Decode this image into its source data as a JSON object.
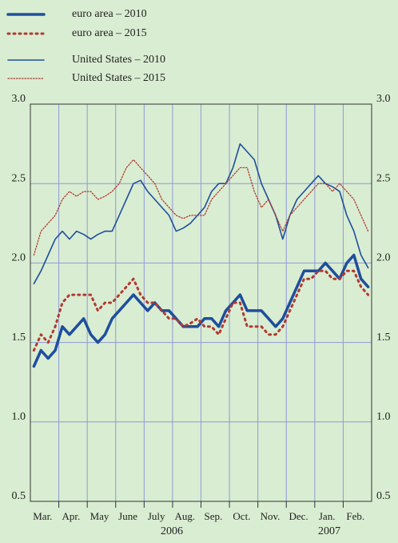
{
  "chart_data": {
    "type": "line",
    "categories": [
      null,
      "Mar.",
      null,
      null,
      null,
      "Apr.",
      null,
      null,
      null,
      "May",
      null,
      null,
      null,
      "June",
      null,
      null,
      null,
      "July",
      null,
      null,
      null,
      "Aug.",
      null,
      null,
      null,
      "Sep.",
      null,
      null,
      null,
      "Oct.",
      null,
      null,
      null,
      "Nov.",
      null,
      null,
      null,
      "Dec.",
      null,
      null,
      null,
      "Jan.",
      null,
      null,
      null,
      "Feb.",
      null,
      null
    ],
    "x_group_labels": [
      "2006",
      "2007"
    ],
    "ylim": [
      0.5,
      3.0
    ],
    "yticks": [
      {
        "value": 0.5,
        "label": "0.5"
      },
      {
        "value": 1.0,
        "label": "1.0"
      },
      {
        "value": 1.5,
        "label": "1.5"
      },
      {
        "value": 2.0,
        "label": "2.0"
      },
      {
        "value": 2.5,
        "label": "2.5"
      },
      {
        "value": 3.0,
        "label": "3.0"
      }
    ],
    "grid": true,
    "legend": "upper left",
    "series": [
      {
        "name": "euro area – 2010",
        "color": "#1f4e9c",
        "line_style": "solid",
        "line_width": 3.5,
        "values": [
          1.35,
          1.45,
          1.4,
          1.45,
          1.6,
          1.55,
          1.6,
          1.65,
          1.55,
          1.5,
          1.55,
          1.65,
          1.7,
          1.75,
          1.8,
          1.75,
          1.7,
          1.75,
          1.7,
          1.7,
          1.65,
          1.6,
          1.6,
          1.6,
          1.65,
          1.65,
          1.6,
          1.7,
          1.75,
          1.8,
          1.7,
          1.7,
          1.7,
          1.65,
          1.6,
          1.65,
          1.75,
          1.85,
          1.95,
          1.95,
          1.95,
          2.0,
          1.95,
          1.9,
          2.0,
          2.05,
          1.9,
          1.85
        ]
      },
      {
        "name": "euro area – 2015",
        "color": "#b03a32",
        "line_style": "dotted",
        "line_width": 3,
        "values": [
          1.45,
          1.55,
          1.5,
          1.6,
          1.75,
          1.8,
          1.8,
          1.8,
          1.8,
          1.7,
          1.75,
          1.75,
          1.8,
          1.85,
          1.9,
          1.8,
          1.75,
          1.75,
          1.7,
          1.65,
          1.65,
          1.6,
          1.62,
          1.65,
          1.6,
          1.6,
          1.55,
          1.65,
          1.75,
          1.75,
          1.6,
          1.6,
          1.6,
          1.55,
          1.55,
          1.6,
          1.7,
          1.8,
          1.9,
          1.9,
          1.95,
          1.95,
          1.9,
          1.9,
          1.95,
          1.95,
          1.85,
          1.8
        ]
      },
      {
        "name": "United States – 2010",
        "color": "#1f4e9c",
        "line_style": "solid",
        "line_width": 1.6,
        "values": [
          1.87,
          1.95,
          2.05,
          2.15,
          2.2,
          2.15,
          2.2,
          2.18,
          2.15,
          2.18,
          2.2,
          2.2,
          2.3,
          2.4,
          2.5,
          2.52,
          2.45,
          2.4,
          2.35,
          2.3,
          2.2,
          2.22,
          2.25,
          2.3,
          2.35,
          2.45,
          2.5,
          2.5,
          2.6,
          2.75,
          2.7,
          2.65,
          2.5,
          2.4,
          2.3,
          2.15,
          2.3,
          2.4,
          2.45,
          2.5,
          2.55,
          2.5,
          2.48,
          2.45,
          2.3,
          2.2,
          2.05,
          1.97
        ]
      },
      {
        "name": "United States – 2015",
        "color": "#b03a32",
        "line_style": "dotted",
        "line_width": 1.3,
        "values": [
          2.05,
          2.2,
          2.25,
          2.3,
          2.4,
          2.45,
          2.42,
          2.45,
          2.45,
          2.4,
          2.42,
          2.45,
          2.5,
          2.6,
          2.65,
          2.6,
          2.55,
          2.5,
          2.4,
          2.35,
          2.3,
          2.28,
          2.3,
          2.3,
          2.3,
          2.4,
          2.45,
          2.5,
          2.55,
          2.6,
          2.6,
          2.45,
          2.35,
          2.4,
          2.3,
          2.2,
          2.3,
          2.35,
          2.4,
          2.45,
          2.5,
          2.5,
          2.45,
          2.5,
          2.45,
          2.4,
          2.3,
          2.2
        ]
      }
    ]
  }
}
